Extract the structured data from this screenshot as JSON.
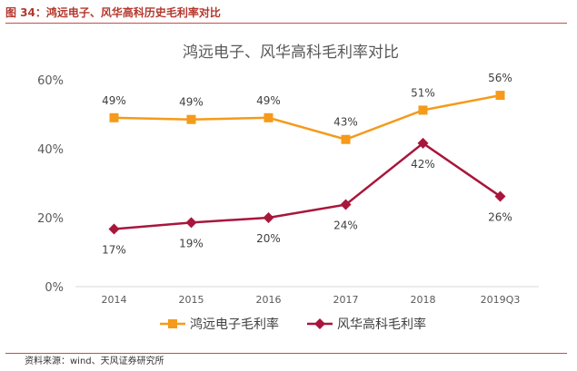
{
  "header": {
    "figure_title": "图 34：鸿远电子、风华高科历史毛利率对比",
    "source": "资料来源：wind、天风证券研究所"
  },
  "chart_data": {
    "type": "line",
    "title": "鸿远电子、风华高科毛利率对比",
    "categories": [
      "2014",
      "2015",
      "2016",
      "2017",
      "2018",
      "2019Q3"
    ],
    "series": [
      {
        "name": "鸿远电子毛利率",
        "values": [
          49,
          48.5,
          49,
          42.7,
          51.2,
          55.5
        ],
        "labels": [
          "49%",
          "49%",
          "49%",
          "43%",
          "51%",
          "56%"
        ],
        "color": "#f59a1a",
        "marker": "square"
      },
      {
        "name": "风华高科毛利率",
        "values": [
          16.7,
          18.6,
          20,
          23.8,
          41.6,
          26.2
        ],
        "labels": [
          "17%",
          "19%",
          "20%",
          "24%",
          "42%",
          "26%"
        ],
        "color": "#a8163c",
        "marker": "diamond"
      }
    ],
    "yticks": [
      "0%",
      "20%",
      "40%",
      "60%"
    ],
    "ylim": [
      0,
      60
    ],
    "grid": false,
    "legend": "bottom"
  }
}
